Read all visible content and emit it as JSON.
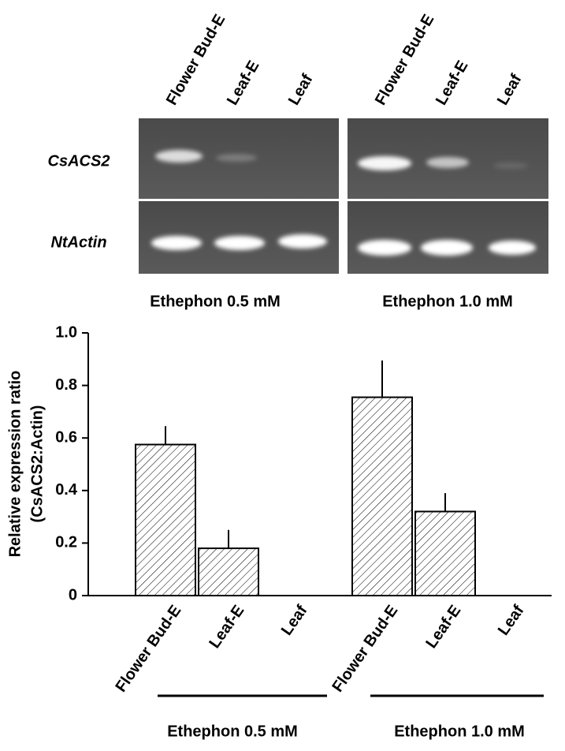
{
  "gel": {
    "lanes": [
      "Flower Bud-E",
      "Leaf-E",
      "Leaf",
      "Flower Bud-E",
      "Leaf-E",
      "Leaf"
    ],
    "rows": [
      "CsACS2",
      "NtActin"
    ],
    "groups": [
      "Ethephon 0.5 mM",
      "Ethephon 1.0 mM"
    ]
  },
  "chart_data": {
    "type": "bar",
    "ylabel": [
      "Relative expression ratio",
      "(CsACS2:Actin)"
    ],
    "categories": [
      "Flower Bud-E",
      "Leaf-E",
      "Leaf",
      "Flower Bud-E",
      "Leaf-E",
      "Leaf"
    ],
    "groups": [
      "Ethephon 0.5 mM",
      "Ethephon 1.0 mM"
    ],
    "values": [
      0.575,
      0.18,
      0,
      0.755,
      0.32,
      0
    ],
    "errors": [
      0.07,
      0.07,
      0,
      0.14,
      0.07,
      0
    ],
    "ylim": [
      0,
      1
    ],
    "yticks": [
      0,
      0.2,
      0.4,
      0.6,
      0.8,
      {
        "value": 1,
        "label": "1.0"
      }
    ],
    "hatch": true
  }
}
